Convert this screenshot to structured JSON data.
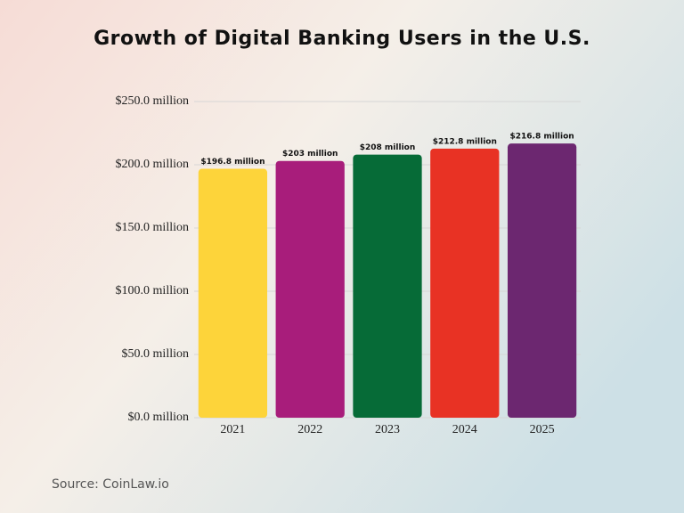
{
  "chart_data": {
    "type": "bar",
    "title": "Growth of Digital Banking Users in the U.S.",
    "categories": [
      "2021",
      "2022",
      "2023",
      "2024",
      "2025"
    ],
    "values": [
      196.8,
      203,
      208,
      212.8,
      216.8
    ],
    "value_labels": [
      "$196.8 million",
      "$203 million",
      "$208 million",
      "$212.8 million",
      "$216.8 million"
    ],
    "colors": [
      "#fdd43a",
      "#a81d7b",
      "#066b37",
      "#e83224",
      "#6c2770"
    ],
    "ylim": [
      0,
      250
    ],
    "yticks": [
      {
        "value": 0,
        "label": "$0.0 million"
      },
      {
        "value": 50,
        "label": "$50.0 million"
      },
      {
        "value": 100,
        "label": "$100.0 million"
      },
      {
        "value": 150,
        "label": "$150.0 million"
      },
      {
        "value": 200,
        "label": "$200.0 million"
      },
      {
        "value": 250,
        "label": "$250.0 million"
      }
    ],
    "grid": true,
    "source": "Source: CoinLaw.io"
  }
}
